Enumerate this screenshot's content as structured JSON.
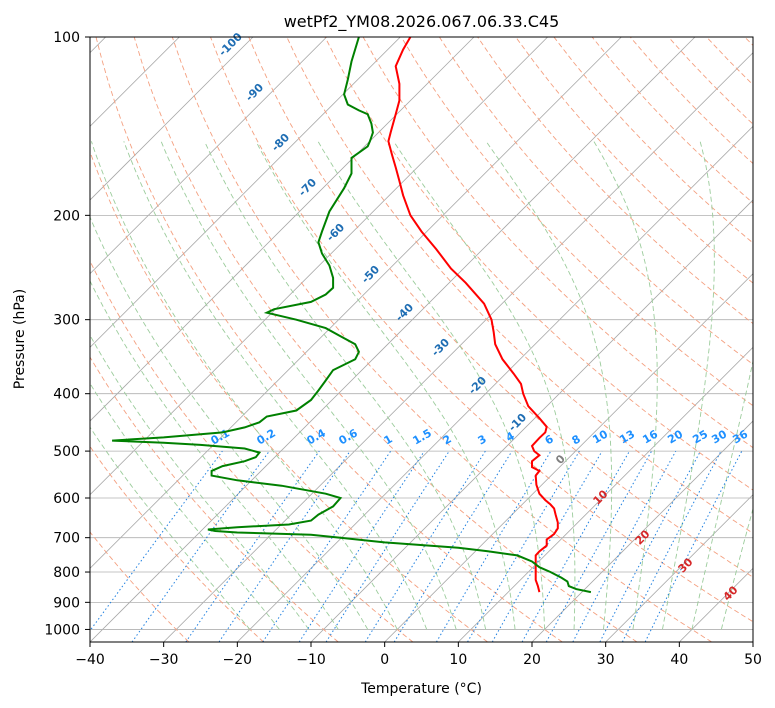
{
  "chart_data": {
    "type": "line",
    "title": "wetPf2_YM08.2026.067.06.33.C45",
    "xlabel": "Temperature (°C)",
    "ylabel": "Pressure (hPa)",
    "xlim": [
      -40,
      50
    ],
    "ylim": [
      1050,
      100
    ],
    "y_scale": "log",
    "grid": true,
    "x_ticks": [
      -40,
      -30,
      -20,
      -10,
      0,
      10,
      20,
      30,
      40,
      50
    ],
    "x_tick_labels": [
      "−40",
      "−30",
      "−20",
      "−10",
      "0",
      "10",
      "20",
      "30",
      "40",
      "50"
    ],
    "y_ticks": [
      100,
      200,
      300,
      400,
      500,
      600,
      700,
      800,
      900,
      1000
    ],
    "y_tick_labels": [
      "100",
      "200",
      "300",
      "400",
      "500",
      "600",
      "700",
      "800",
      "900",
      "1000"
    ],
    "series": [
      {
        "color": "#ff0000",
        "points": [
          [
            3.5,
            100
          ],
          [
            2.5,
            105
          ],
          [
            1.5,
            112
          ],
          [
            2,
            120
          ],
          [
            2,
            128
          ],
          [
            1.5,
            135
          ],
          [
            0.8,
            145
          ],
          [
            0.5,
            150
          ],
          [
            1,
            158
          ],
          [
            1.5,
            166
          ],
          [
            2,
            175
          ],
          [
            2.5,
            185
          ],
          [
            3.5,
            200
          ],
          [
            5,
            213
          ],
          [
            7,
            228
          ],
          [
            9,
            246
          ],
          [
            11,
            260
          ],
          [
            13.5,
            282
          ],
          [
            14.5,
            300
          ],
          [
            14.8,
            315
          ],
          [
            15,
            330
          ],
          [
            16,
            350
          ],
          [
            17.5,
            370
          ],
          [
            18.5,
            385
          ],
          [
            18.8,
            400
          ],
          [
            19.5,
            420
          ],
          [
            21,
            440
          ],
          [
            22,
            455
          ],
          [
            21.8,
            465
          ],
          [
            21,
            475
          ],
          [
            20,
            490
          ],
          [
            20.3,
            500
          ],
          [
            21,
            508
          ],
          [
            20,
            520
          ],
          [
            20,
            532
          ],
          [
            21,
            540
          ],
          [
            20.5,
            550
          ],
          [
            20.6,
            570
          ],
          [
            21,
            590
          ],
          [
            21.8,
            605
          ],
          [
            22.5,
            615
          ],
          [
            23,
            625
          ],
          [
            23.2,
            640
          ],
          [
            23.5,
            660
          ],
          [
            23.5,
            675
          ],
          [
            23,
            690
          ],
          [
            22,
            705
          ],
          [
            22,
            722
          ],
          [
            21,
            738
          ],
          [
            20.5,
            750
          ],
          [
            20.5,
            770
          ],
          [
            20.5,
            800
          ],
          [
            20.5,
            825
          ],
          [
            20.8,
            845
          ],
          [
            21,
            865
          ]
        ]
      },
      {
        "color": "#008000",
        "points": [
          [
            -3.5,
            100
          ],
          [
            -4.5,
            110
          ],
          [
            -5,
            118
          ],
          [
            -5.5,
            125
          ],
          [
            -5,
            130
          ],
          [
            -3.5,
            133
          ],
          [
            -2.3,
            135
          ],
          [
            -1.8,
            140
          ],
          [
            -1.6,
            145
          ],
          [
            -2,
            150
          ],
          [
            -2.3,
            153
          ],
          [
            -4.5,
            160
          ],
          [
            -4.5,
            170
          ],
          [
            -5.5,
            180
          ],
          [
            -7.5,
            197
          ],
          [
            -8.5,
            213
          ],
          [
            -9,
            222
          ],
          [
            -8.5,
            232
          ],
          [
            -7.5,
            243
          ],
          [
            -7,
            255
          ],
          [
            -7,
            265
          ],
          [
            -8,
            272
          ],
          [
            -10,
            280
          ],
          [
            -15,
            288
          ],
          [
            -16,
            292
          ],
          [
            -12,
            300
          ],
          [
            -8,
            310
          ],
          [
            -6,
            320
          ],
          [
            -4,
            330
          ],
          [
            -3.5,
            340
          ],
          [
            -4,
            350
          ],
          [
            -7,
            365
          ],
          [
            -8,
            380
          ],
          [
            -9,
            395
          ],
          [
            -10,
            410
          ],
          [
            -12,
            427
          ],
          [
            -16,
            437
          ],
          [
            -17,
            447
          ],
          [
            -19,
            456
          ],
          [
            -22,
            465
          ],
          [
            -30,
            474
          ],
          [
            -37,
            480
          ],
          [
            -30,
            484
          ],
          [
            -25,
            488
          ],
          [
            -19,
            495
          ],
          [
            -17,
            503
          ],
          [
            -17.5,
            512
          ],
          [
            -19,
            520
          ],
          [
            -22,
            530
          ],
          [
            -23.5,
            540
          ],
          [
            -23.5,
            550
          ],
          [
            -20,
            560
          ],
          [
            -14,
            572
          ],
          [
            -8,
            590
          ],
          [
            -6,
            600
          ],
          [
            -7,
            620
          ],
          [
            -9,
            640
          ],
          [
            -10,
            655
          ],
          [
            -13,
            665
          ],
          [
            -20,
            672
          ],
          [
            -24,
            678
          ],
          [
            -23,
            682
          ],
          [
            -20,
            686
          ],
          [
            -10,
            692
          ],
          [
            -6,
            700
          ],
          [
            0,
            713
          ],
          [
            10,
            728
          ],
          [
            14,
            738
          ],
          [
            18,
            750
          ],
          [
            20,
            768
          ],
          [
            21,
            785
          ],
          [
            22.5,
            800
          ],
          [
            24,
            818
          ],
          [
            24.8,
            830
          ],
          [
            25,
            845
          ],
          [
            26,
            855
          ],
          [
            28,
            865
          ]
        ]
      }
    ],
    "dry_adiabat_labels": [
      "-100",
      "-90",
      "-80",
      "-70",
      "-60",
      "-50",
      "-40",
      "-30",
      "-20",
      "-10",
      "0",
      "10",
      "20",
      "30",
      "40"
    ],
    "mixing_ratio_labels": [
      "0.1",
      "0.2",
      "0.4",
      "0.6",
      "1",
      "1.5",
      "2",
      "3",
      "4",
      "6",
      "8",
      "10",
      "13",
      "16",
      "20",
      "25",
      "30",
      "36"
    ],
    "colors": {
      "isotherm": "#a8a8a8",
      "isobar": "#b0b0b0",
      "dry_adiabat": "#f4a080",
      "moist_adiabat": "#9ccc9c",
      "mixing_ratio": "#2080e0",
      "iso_label_dark": "#1f6eb4",
      "iso_label_light": "#1e90ff",
      "label_red": "#d62728",
      "label_gray": "#7f7f7f",
      "tan_curve": "#d2b48c"
    }
  }
}
